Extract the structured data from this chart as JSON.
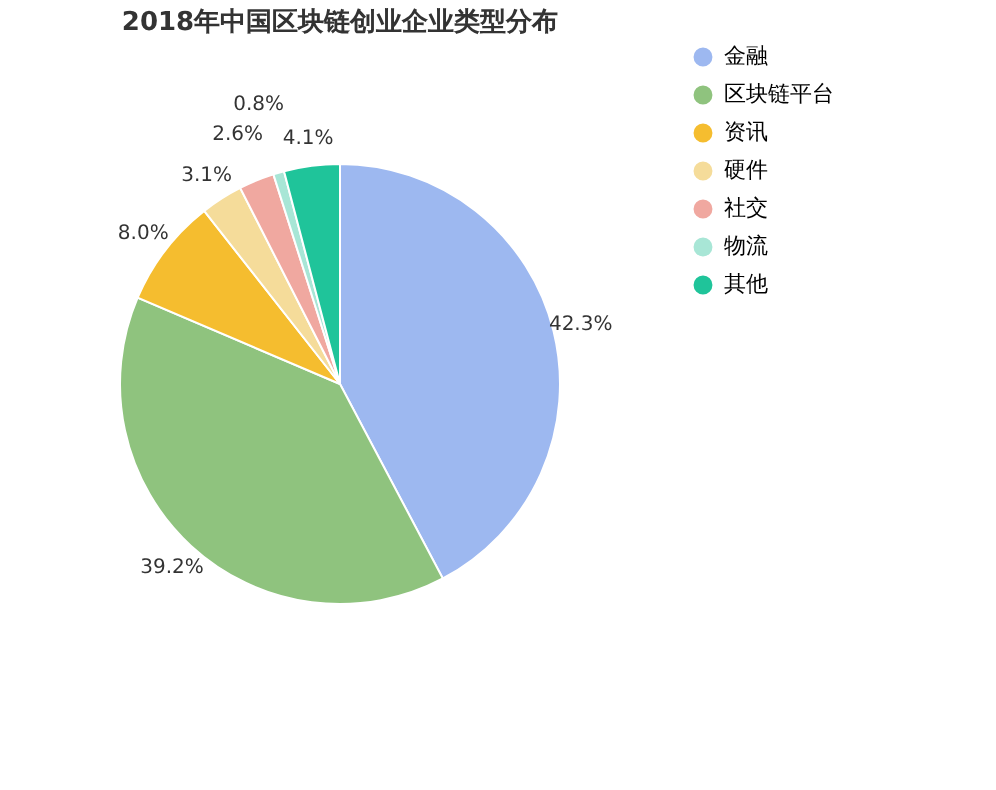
{
  "chart_data": {
    "type": "pie",
    "title": "2018年中国区块链创业企业类型分布",
    "categories": [
      "金融",
      "区块链平台",
      "资讯",
      "硬件",
      "社交",
      "物流",
      "其他"
    ],
    "values": [
      42.3,
      39.2,
      8.0,
      3.1,
      2.6,
      0.8,
      4.1
    ],
    "colors": [
      "#9db8f0",
      "#8fc37e",
      "#f5bd2f",
      "#f5dc9a",
      "#f0a8a0",
      "#a8e6d6",
      "#1fc49a"
    ],
    "value_labels": [
      "42.3%",
      "39.2%",
      "8.0%",
      "3.1%",
      "2.6%",
      "0.8%",
      "4.1%"
    ],
    "legend": "top right"
  }
}
